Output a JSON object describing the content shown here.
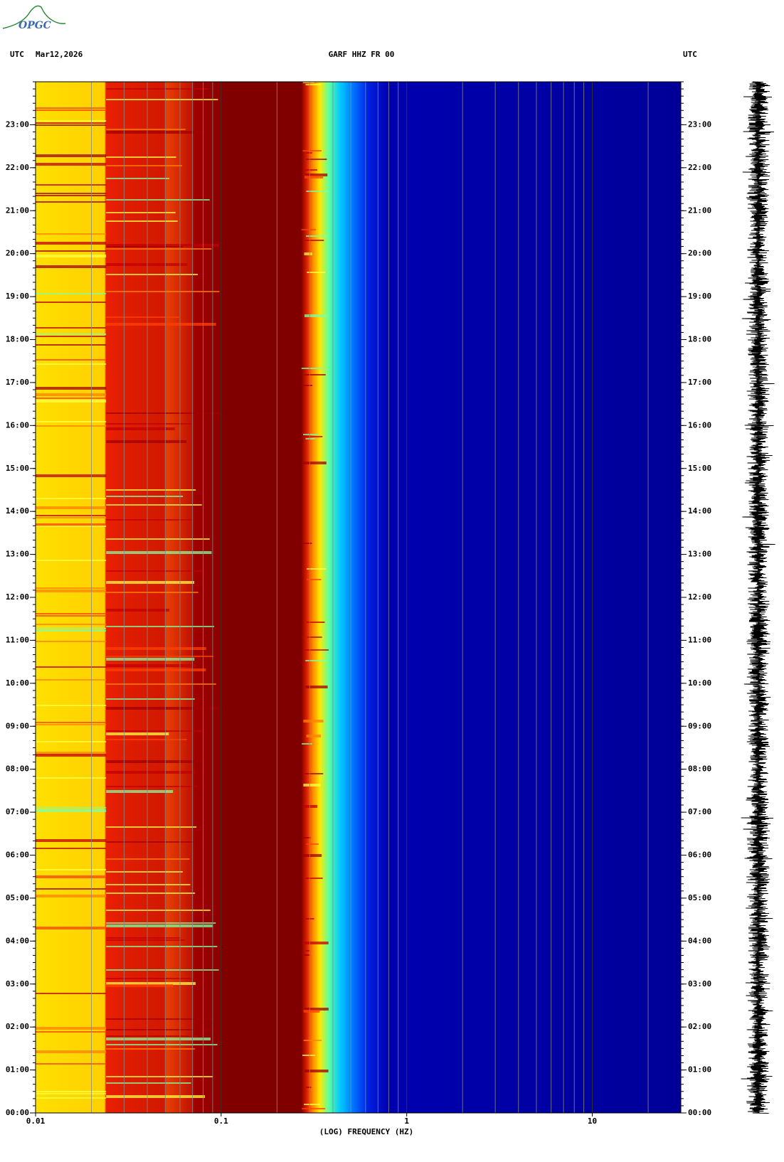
{
  "logo": "OPGC",
  "chart_data": {
    "type": "spectrogram",
    "timezone": "UTC",
    "date": "Mar12,2026",
    "title": "GARF HHZ FR 00",
    "x_label": "(LOG) FREQUENCY (HZ)",
    "x_log": true,
    "xlim": [
      0.01,
      30
    ],
    "xticks": [
      0.01,
      0.1,
      1,
      10
    ],
    "ylim": [
      0,
      24
    ],
    "yticks": [
      {
        "value": 0,
        "label": "00:00"
      },
      {
        "value": 1,
        "label": "01:00"
      },
      {
        "value": 2,
        "label": "02:00"
      },
      {
        "value": 3,
        "label": "03:00"
      },
      {
        "value": 4,
        "label": "04:00"
      },
      {
        "value": 5,
        "label": "05:00"
      },
      {
        "value": 6,
        "label": "06:00"
      },
      {
        "value": 7,
        "label": "07:00"
      },
      {
        "value": 8,
        "label": "08:00"
      },
      {
        "value": 9,
        "label": "09:00"
      },
      {
        "value": 10,
        "label": "10:00"
      },
      {
        "value": 11,
        "label": "11:00"
      },
      {
        "value": 12,
        "label": "12:00"
      },
      {
        "value": 13,
        "label": "13:00"
      },
      {
        "value": 14,
        "label": "14:00"
      },
      {
        "value": 15,
        "label": "15:00"
      },
      {
        "value": 16,
        "label": "16:00"
      },
      {
        "value": 17,
        "label": "17:00"
      },
      {
        "value": 18,
        "label": "18:00"
      },
      {
        "value": 19,
        "label": "19:00"
      },
      {
        "value": 20,
        "label": "20:00"
      },
      {
        "value": 21,
        "label": "21:00"
      },
      {
        "value": 22,
        "label": "22:00"
      },
      {
        "value": 23,
        "label": "23:00"
      }
    ]
  }
}
